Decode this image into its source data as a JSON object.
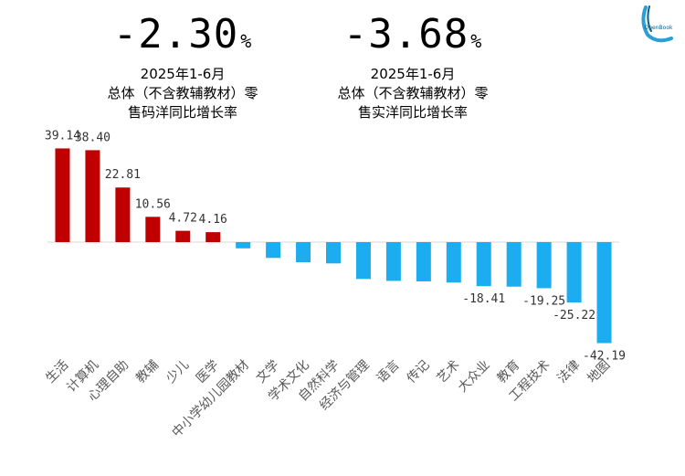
{
  "kpis": [
    {
      "value": "-2.30",
      "unit": "%",
      "period": "2025年1-6月",
      "line1": "总体（不含教辅教材）零",
      "line2": "售码洋同比增长率"
    },
    {
      "value": "-3.68",
      "unit": "%",
      "period": "2025年1-6月",
      "line1": "总体（不含教辅教材）零",
      "line2": "售实洋同比增长率"
    }
  ],
  "logo": {
    "text": "OpenBook"
  },
  "colors": {
    "positive": "#c00000",
    "negative": "#1cadf0",
    "axis": "#d9d9d9"
  },
  "chart_data": {
    "type": "bar",
    "categories": [
      "生活",
      "计算机",
      "心理自助",
      "教辅",
      "少儿",
      "医学",
      "中小学幼儿园教材",
      "文学",
      "学术文化",
      "自然科学",
      "经济与管理",
      "语言",
      "传记",
      "艺术",
      "大众业",
      "教育",
      "工程技术",
      "法律",
      "地图"
    ],
    "values": [
      39.14,
      38.4,
      22.81,
      10.56,
      4.72,
      4.16,
      -2.6,
      -6.6,
      -8.4,
      -8.9,
      -15.4,
      -16.2,
      -16.4,
      -16.9,
      -18.41,
      -18.6,
      -19.25,
      -25.22,
      -42.19
    ],
    "labels": [
      "39.14",
      "38.40",
      "22.81",
      "10.56",
      "4.72",
      "4.16",
      "",
      "",
      "",
      "",
      "",
      "",
      "",
      "",
      "-18.41",
      "",
      "-19.25",
      "-25.22",
      "-42.19"
    ],
    "ylim": [
      -45,
      40
    ],
    "title": "",
    "xlabel": "",
    "ylabel": ""
  }
}
